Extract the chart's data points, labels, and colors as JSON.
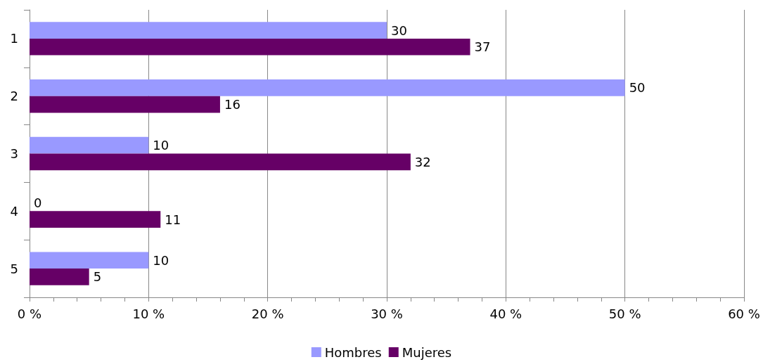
{
  "chart_data": {
    "type": "bar",
    "orientation": "horizontal",
    "categories": [
      "1",
      "2",
      "3",
      "4",
      "5"
    ],
    "series": [
      {
        "name": "Hombres",
        "color": "#9999ff",
        "values": [
          30,
          50,
          10,
          0,
          10
        ]
      },
      {
        "name": "Mujeres",
        "color": "#660066",
        "values": [
          37,
          16,
          32,
          11,
          5
        ]
      }
    ],
    "xlim": [
      0,
      60
    ],
    "xticks": [
      {
        "value": 0,
        "label": "0 %"
      },
      {
        "value": 10,
        "label": "10 %"
      },
      {
        "value": 20,
        "label": "20 %"
      },
      {
        "value": 30,
        "label": "30 %"
      },
      {
        "value": 40,
        "label": "40 %"
      },
      {
        "value": 50,
        "label": "50 %"
      },
      {
        "value": 60,
        "label": "60 %"
      }
    ],
    "grid": "x",
    "legend": "bottom",
    "data_labels": true
  }
}
